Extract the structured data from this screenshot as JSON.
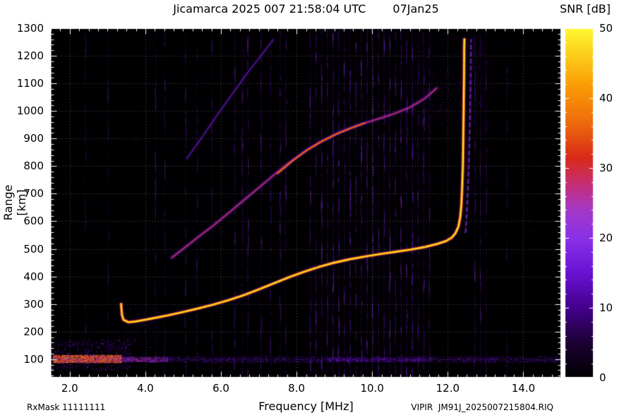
{
  "page": {
    "title": "Jicamarca 2025 007 21:58:04 UTC",
    "date_label": "07Jan25",
    "colorbar_title": "SNR [dB]",
    "xlabel": "Frequency [MHz]",
    "ylabel": "Range [km]",
    "footer_left": "RxMask 11111111",
    "footer_right": "VIPIR  JM91J_2025007215804.RIQ"
  },
  "chart_data": {
    "type": "heatmap",
    "title": "Jicamarca 2025 007 21:58:04 UTC",
    "date": "07Jan25",
    "xlabel": "Frequency [MHz]",
    "ylabel": "Range [km]",
    "xlim": [
      1.5,
      15.0
    ],
    "ylim": [
      33,
      1300
    ],
    "x_ticks": [
      2.0,
      4.0,
      6.0,
      8.0,
      10.0,
      12.0,
      14.0
    ],
    "x_minor_step": 0.25,
    "y_ticks": [
      100,
      200,
      300,
      400,
      500,
      600,
      700,
      800,
      900,
      1000,
      1100,
      1200,
      1300
    ],
    "y_minor_step": 20,
    "grid": "dotted",
    "bg_color": "#000000",
    "frame_color": "#ffffff",
    "colorbar": {
      "label": "SNR [dB]",
      "min": 0,
      "max": 50,
      "ticks": [
        0,
        10,
        20,
        30,
        40,
        50
      ],
      "minor_step": 2,
      "palette": [
        [
          0.0,
          "#000000"
        ],
        [
          0.1,
          "#1c0033"
        ],
        [
          0.2,
          "#44008c"
        ],
        [
          0.3,
          "#6912d2"
        ],
        [
          0.4,
          "#8a30e8"
        ],
        [
          0.48,
          "#a438c8"
        ],
        [
          0.55,
          "#c32f7a"
        ],
        [
          0.63,
          "#d92a18"
        ],
        [
          0.73,
          "#ee6b0c"
        ],
        [
          0.84,
          "#fb9e06"
        ],
        [
          1.0,
          "#fff830"
        ]
      ]
    },
    "traces": [
      {
        "name": "F-region first hop O-trace",
        "snr_db": 48,
        "points": [
          [
            3.36,
            300
          ],
          [
            3.38,
            262
          ],
          [
            3.42,
            243
          ],
          [
            3.55,
            234
          ],
          [
            3.75,
            237
          ],
          [
            4.0,
            243
          ],
          [
            4.3,
            251
          ],
          [
            4.6,
            259
          ],
          [
            5.0,
            271
          ],
          [
            5.4,
            284
          ],
          [
            5.8,
            298
          ],
          [
            6.2,
            314
          ],
          [
            6.6,
            332
          ],
          [
            7.0,
            353
          ],
          [
            7.4,
            375
          ],
          [
            7.8,
            397
          ],
          [
            8.2,
            417
          ],
          [
            8.6,
            435
          ],
          [
            9.0,
            450
          ],
          [
            9.4,
            462
          ],
          [
            9.8,
            472
          ],
          [
            10.2,
            481
          ],
          [
            10.6,
            489
          ],
          [
            11.0,
            497
          ],
          [
            11.4,
            507
          ],
          [
            11.7,
            517
          ],
          [
            11.95,
            528
          ],
          [
            12.1,
            540
          ],
          [
            12.2,
            556
          ],
          [
            12.28,
            580
          ],
          [
            12.33,
            615
          ],
          [
            12.36,
            660
          ],
          [
            12.38,
            720
          ],
          [
            12.4,
            800
          ],
          [
            12.41,
            900
          ],
          [
            12.42,
            1010
          ],
          [
            12.43,
            1120
          ],
          [
            12.435,
            1230
          ],
          [
            12.44,
            1260
          ]
        ],
        "dash": null,
        "layers": [
          {
            "w": 7,
            "t": 0.3,
            "a": 0.2
          },
          {
            "w": 4.2,
            "t": 0.68,
            "a": 0.9
          },
          {
            "w": 2.2,
            "t": 0.96,
            "a": 1.0
          }
        ],
        "fuzz": {
          "n": 5,
          "spread": 6,
          "t": 0.3,
          "a": 0.5
        }
      },
      {
        "name": "second hop echo",
        "snr_db": 22,
        "points": [
          [
            4.7,
            468
          ],
          [
            5.0,
            500
          ],
          [
            5.4,
            543
          ],
          [
            5.8,
            585
          ],
          [
            6.2,
            630
          ],
          [
            6.6,
            676
          ],
          [
            7.0,
            722
          ],
          [
            7.4,
            768
          ],
          [
            7.8,
            812
          ],
          [
            8.2,
            852
          ],
          [
            8.6,
            886
          ],
          [
            9.0,
            914
          ],
          [
            9.4,
            937
          ],
          [
            9.8,
            956
          ],
          [
            10.2,
            973
          ],
          [
            10.6,
            991
          ],
          [
            11.0,
            1013
          ],
          [
            11.4,
            1046
          ],
          [
            11.7,
            1082
          ]
        ],
        "dash": null,
        "layers": [
          {
            "w": 7,
            "t": 0.28,
            "a": 0.22
          },
          {
            "w": 3,
            "t": 0.5,
            "a": 0.55
          },
          {
            "w": 1.6,
            "t": 0.58,
            "a": 0.6
          }
        ],
        "fuzz": {
          "n": 6,
          "spread": 8,
          "t": 0.28,
          "a": 0.45
        }
      },
      {
        "name": "second hop bright segment",
        "snr_db": 30,
        "points": [
          [
            7.5,
            774
          ],
          [
            7.9,
            820
          ],
          [
            8.3,
            860
          ],
          [
            8.7,
            892
          ],
          [
            9.1,
            919
          ],
          [
            9.5,
            941
          ],
          [
            9.8,
            956
          ]
        ],
        "dash": null,
        "layers": [
          {
            "w": 4.5,
            "t": 0.4,
            "a": 0.3
          },
          {
            "w": 2.4,
            "t": 0.66,
            "a": 0.85
          },
          {
            "w": 1.3,
            "t": 0.75,
            "a": 0.9
          }
        ],
        "fuzz": {
          "n": 4,
          "spread": 5,
          "t": 0.3,
          "a": 0.5
        }
      },
      {
        "name": "third hop faint echo",
        "snr_db": 14,
        "points": [
          [
            5.1,
            828
          ],
          [
            5.5,
            905
          ],
          [
            5.9,
            985
          ],
          [
            6.3,
            1062
          ],
          [
            6.7,
            1138
          ],
          [
            7.1,
            1208
          ],
          [
            7.38,
            1258
          ]
        ],
        "dash": null,
        "layers": [
          {
            "w": 5,
            "t": 0.22,
            "a": 0.22
          },
          {
            "w": 2,
            "t": 0.36,
            "a": 0.5
          }
        ],
        "fuzz": {
          "n": 5,
          "spread": 6,
          "t": 0.22,
          "a": 0.4
        }
      },
      {
        "name": "asymptote X-trace echo",
        "snr_db": 15,
        "points": [
          [
            12.47,
            560
          ],
          [
            12.5,
            620
          ],
          [
            12.53,
            710
          ],
          [
            12.56,
            820
          ],
          [
            12.58,
            940
          ],
          [
            12.6,
            1070
          ],
          [
            12.61,
            1190
          ],
          [
            12.615,
            1258
          ]
        ],
        "dash": [
          5,
          5
        ],
        "layers": [
          {
            "w": 4,
            "t": 0.28,
            "a": 0.3
          },
          {
            "w": 1.8,
            "t": 0.42,
            "a": 0.65
          }
        ],
        "fuzz": {
          "n": 3,
          "spread": 4,
          "t": 0.25,
          "a": 0.4
        }
      }
    ],
    "bands": [
      {
        "name": "E-region/ground band",
        "x": [
          1.5,
          15.0
        ],
        "center_km": 100,
        "half_km": 11,
        "n": 3000,
        "t": [
          0.1,
          0.35
        ],
        "a": 0.6
      },
      {
        "name": "E-region strong low-freq",
        "x": [
          1.55,
          3.35
        ],
        "center_km": 102,
        "half_km": 14,
        "n": 1700,
        "t": [
          0.45,
          0.88
        ],
        "a": 0.85
      },
      {
        "name": "E-region fade",
        "x": [
          3.35,
          4.6
        ],
        "center_km": 100,
        "half_km": 9,
        "n": 420,
        "t": [
          0.3,
          0.6
        ],
        "a": 0.6
      },
      {
        "name": "E-region mid patch",
        "x": [
          8.8,
          11.4
        ],
        "center_km": 99,
        "half_km": 7,
        "n": 500,
        "t": [
          0.15,
          0.4
        ],
        "a": 0.5
      }
    ],
    "noise": {
      "speckle": {
        "count": 9000,
        "t_range": [
          0.05,
          0.28
        ],
        "max_alpha": 0.5
      },
      "rfi_stripes": [
        [
          2.4,
          0.08
        ],
        [
          3.0,
          0.07
        ],
        [
          4.25,
          0.1
        ],
        [
          4.5,
          0.07
        ],
        [
          5.05,
          0.1
        ],
        [
          5.35,
          0.08
        ],
        [
          5.75,
          0.09
        ],
        [
          6.35,
          0.12
        ],
        [
          6.55,
          0.1
        ],
        [
          6.7,
          0.12
        ],
        [
          7.05,
          0.12
        ],
        [
          7.3,
          0.1
        ],
        [
          7.55,
          0.12
        ],
        [
          7.7,
          0.1
        ],
        [
          8.35,
          0.14
        ],
        [
          8.5,
          0.12
        ],
        [
          8.65,
          0.16
        ],
        [
          8.8,
          0.12
        ],
        [
          8.95,
          0.18
        ],
        [
          9.1,
          0.14
        ],
        [
          9.25,
          0.12
        ],
        [
          9.4,
          0.16
        ],
        [
          9.55,
          0.12
        ],
        [
          9.7,
          0.18
        ],
        [
          9.85,
          0.14
        ],
        [
          10.0,
          0.16
        ],
        [
          10.15,
          0.12
        ],
        [
          10.3,
          0.14
        ],
        [
          10.45,
          0.18
        ],
        [
          10.6,
          0.12
        ],
        [
          10.75,
          0.16
        ],
        [
          10.9,
          0.14
        ],
        [
          11.05,
          0.18
        ],
        [
          11.2,
          0.12
        ],
        [
          11.35,
          0.14
        ],
        [
          11.5,
          0.12
        ],
        [
          12.7,
          0.12
        ],
        [
          12.85,
          0.1
        ],
        [
          13.0,
          0.09
        ],
        [
          13.55,
          0.07
        ]
      ],
      "clouds": [
        {
          "x": [
            1.5,
            3.6
          ],
          "y": [
            62,
            172
          ],
          "n": 1100,
          "t": [
            0.12,
            0.38
          ],
          "a": 0.75
        },
        {
          "x": [
            3.25,
            4.35
          ],
          "y": [
            140,
            290
          ],
          "n": 320,
          "t": [
            0.1,
            0.3
          ],
          "a": 0.5
        },
        {
          "x": [
            11.2,
            13.05
          ],
          "y": [
            950,
            1280
          ],
          "n": 1400,
          "t": [
            0.08,
            0.3
          ],
          "a": 0.5
        },
        {
          "x": [
            9.8,
            12.0
          ],
          "y": [
            520,
            1000
          ],
          "n": 650,
          "t": [
            0.07,
            0.25
          ],
          "a": 0.4
        },
        {
          "x": [
            7.7,
            9.8
          ],
          "y": [
            830,
            1080
          ],
          "n": 420,
          "t": [
            0.1,
            0.28
          ],
          "a": 0.45
        },
        {
          "x": [
            4.6,
            6.6
          ],
          "y": [
            430,
            640
          ],
          "n": 260,
          "t": [
            0.08,
            0.24
          ],
          "a": 0.4
        },
        {
          "x": [
            5.0,
            7.6
          ],
          "y": [
            700,
            1000
          ],
          "n": 300,
          "t": [
            0.08,
            0.22
          ],
          "a": 0.35
        }
      ]
    }
  }
}
